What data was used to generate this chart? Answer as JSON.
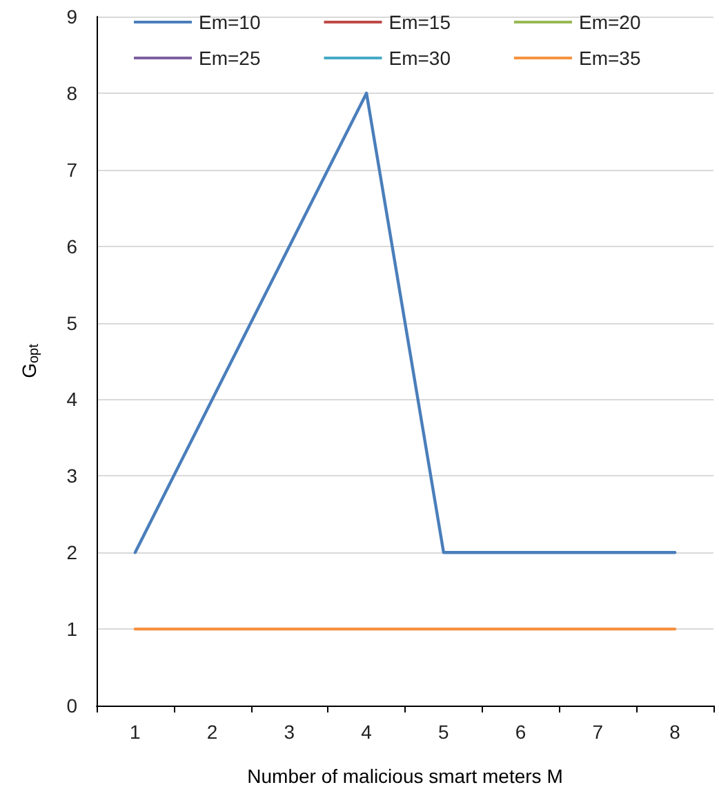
{
  "chart_data": {
    "type": "line",
    "xlabel": "Number of malicious smart meters M",
    "ylabel": "G$_{opt}$",
    "categories": [
      "1",
      "2",
      "3",
      "4",
      "5",
      "6",
      "7",
      "8"
    ],
    "series": [
      {
        "name": "Em=10",
        "color": "#4a7ebb",
        "values": [
          2,
          4,
          6,
          8,
          2,
          2,
          2,
          2
        ]
      },
      {
        "name": "Em=15",
        "color": "#be4b48",
        "values": [
          null,
          null,
          null,
          null,
          null,
          null,
          null,
          null
        ]
      },
      {
        "name": "Em=20",
        "color": "#98b954",
        "values": [
          null,
          null,
          null,
          null,
          null,
          null,
          null,
          null
        ]
      },
      {
        "name": "Em=25",
        "color": "#7d60a0",
        "values": [
          null,
          null,
          null,
          null,
          null,
          null,
          null,
          null
        ]
      },
      {
        "name": "Em=30",
        "color": "#46aac5",
        "values": [
          null,
          null,
          null,
          null,
          null,
          null,
          null,
          null
        ]
      },
      {
        "name": "Em=35",
        "color": "#f69240",
        "values": [
          1,
          1,
          1,
          1,
          1,
          1,
          1,
          1
        ]
      }
    ],
    "ylim": [
      0,
      9
    ],
    "yticks": [
      0,
      1,
      2,
      3,
      4,
      5,
      6,
      7,
      8,
      9
    ],
    "grid": "y",
    "legend": "top",
    "marker": "none",
    "line_style": "solid"
  }
}
